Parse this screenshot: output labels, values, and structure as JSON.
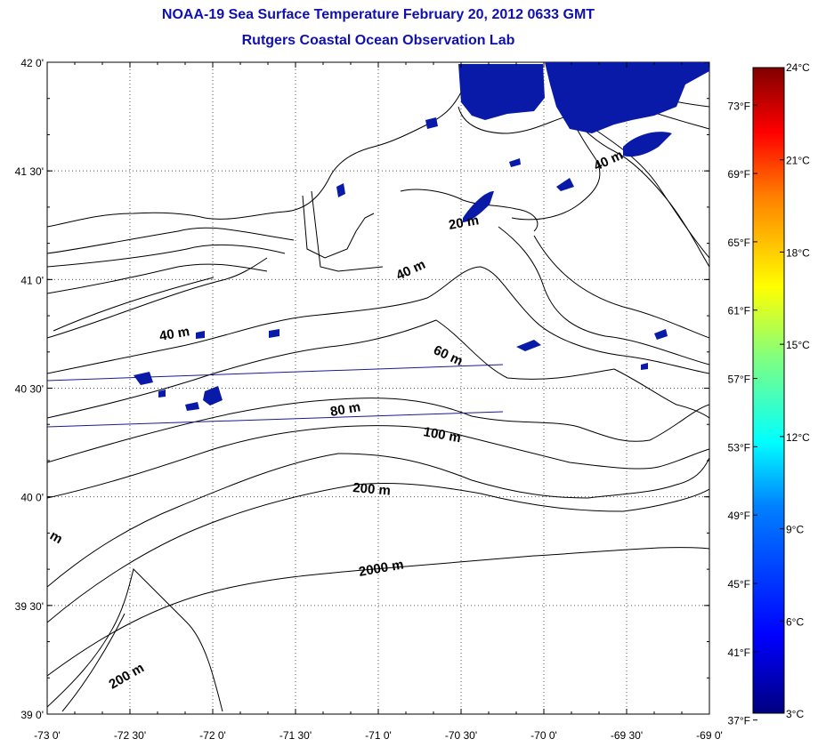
{
  "title_line1": "NOAA-19 Sea Surface Temperature February 20, 2012 0633 GMT",
  "title_line2": "Rutgers Coastal Ocean Observation Lab",
  "map": {
    "lon_range": [
      -73,
      -69
    ],
    "lat_range": [
      39,
      42
    ],
    "lon_ticks": [
      "-73 0'",
      "-72 30'",
      "-72 0'",
      "-71 30'",
      "-71 0'",
      "-70 30'",
      "-70 0'",
      "-69 30'",
      "-69 0'"
    ],
    "lat_ticks": [
      "42 0'",
      "41 30'",
      "41 0'",
      "40 30'",
      "40 0'",
      "39 30'",
      "39 0'"
    ],
    "grid": "dotted",
    "depth_labels": [
      "20 m",
      "40 m",
      "40 m",
      "40 m",
      "60 m",
      "80 m",
      "100 m",
      "200 m",
      "2000 m",
      "200 m",
      "m"
    ]
  },
  "colorbar": {
    "celsius_labels": [
      "24°C",
      "21°C",
      "18°C",
      "15°C",
      "12°C",
      "9°C",
      "6°C",
      "3°C"
    ],
    "fahrenheit_labels": [
      "73°F",
      "69°F",
      "65°F",
      "61°F",
      "57°F",
      "53°F",
      "49°F",
      "45°F",
      "41°F",
      "37°F"
    ],
    "range_c": [
      3,
      24
    ],
    "colors": [
      "#800000",
      "#ff0000",
      "#ff8000",
      "#ffff00",
      "#80ff80",
      "#00ffff",
      "#0080ff",
      "#0000ff",
      "#000080"
    ]
  }
}
